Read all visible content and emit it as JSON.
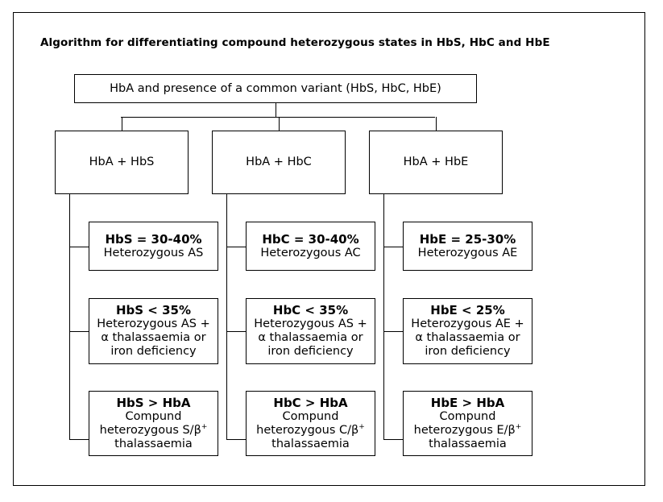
{
  "title": "Algorithm for differentiating  compound heterozygous states in HbS, HbC and HbE",
  "root": "HbA and presence of a common variant (HbS, HbC, HbE)",
  "columns": [
    {
      "header": "HbA + HbS",
      "results": [
        {
          "criterion": "HbS = 30-40%",
          "lines": [
            "Heterozygous AS"
          ]
        },
        {
          "criterion": "HbS < 35%",
          "lines": [
            "Heterozygous AS +",
            "α thalassaemia or",
            "iron deficiency"
          ]
        },
        {
          "criterion": "HbS > HbA",
          "lines": [
            "Compund",
            "heterozygous S/β",
            "thalassaemia"
          ],
          "sup": "+"
        }
      ]
    },
    {
      "header": "HbA + HbC",
      "results": [
        {
          "criterion": "HbC = 30-40%",
          "lines": [
            "Heterozygous AC"
          ]
        },
        {
          "criterion": "HbC < 35%",
          "lines": [
            "Heterozygous AS +",
            "α thalassaemia or",
            "iron deficiency"
          ]
        },
        {
          "criterion": "HbC > HbA",
          "lines": [
            "Compund",
            "heterozygous C/β",
            "thalassaemia"
          ],
          "sup": "+"
        }
      ]
    },
    {
      "header": "HbA + HbE",
      "results": [
        {
          "criterion": "HbE = 25-30%",
          "lines": [
            "Heterozygous AE"
          ]
        },
        {
          "criterion": "HbE < 25%",
          "lines": [
            "Heterozygous AE +",
            "α thalassaemia or",
            "iron deficiency"
          ]
        },
        {
          "criterion": "HbE > HbA",
          "lines": [
            "Compund",
            "heterozygous E/β",
            "thalassaemia"
          ],
          "sup": "+"
        }
      ]
    }
  ]
}
